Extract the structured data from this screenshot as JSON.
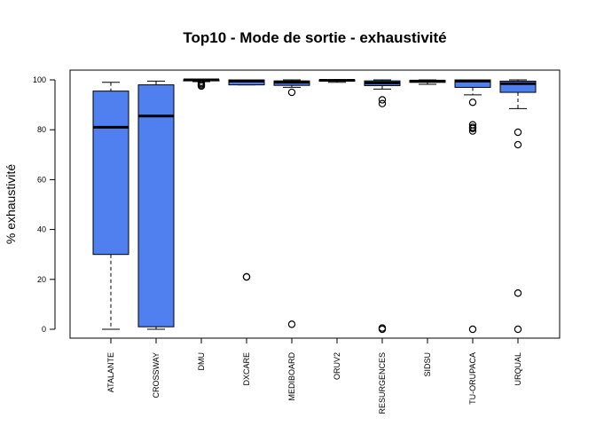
{
  "chart_data": {
    "type": "box",
    "title": "Top10 - Mode de sortie - exhaustivité",
    "xlabel": "",
    "ylabel": "% exhaustivité",
    "ylim": [
      0,
      100
    ],
    "yticks": [
      0,
      20,
      40,
      60,
      80,
      100
    ],
    "grid": false,
    "box_color": "#5080F0",
    "categories": [
      "ATALANTE",
      "CROSSWAY",
      "DMU",
      "DXCARE",
      "MEDIBOARD",
      "ORUV2",
      "RESURGENCES",
      "SIDSU",
      "TU-ORUPACA",
      "URQUAL"
    ],
    "boxes": [
      {
        "category": "ATALANTE",
        "whisker_low": 0,
        "q1": 30,
        "median": 81,
        "q3": 95.5,
        "whisker_high": 99,
        "outliers": []
      },
      {
        "category": "CROSSWAY",
        "whisker_low": 0,
        "q1": 1,
        "median": 85.5,
        "q3": 98,
        "whisker_high": 99.5,
        "outliers": []
      },
      {
        "category": "DMU",
        "whisker_low": 99.3,
        "q1": 99.6,
        "median": 100,
        "q3": 100,
        "whisker_high": 100,
        "outliers": [
          97.5,
          98,
          98.5,
          99
        ]
      },
      {
        "category": "DXCARE",
        "whisker_low": 98,
        "q1": 98,
        "median": 99.5,
        "q3": 100,
        "whisker_high": 100,
        "outliers": [
          21,
          21
        ]
      },
      {
        "category": "MEDIBOARD",
        "whisker_low": 97,
        "q1": 97.8,
        "median": 99,
        "q3": 99.6,
        "whisker_high": 100,
        "outliers": [
          95,
          2
        ]
      },
      {
        "category": "ORUV2",
        "whisker_low": 99,
        "q1": 99.5,
        "median": 99.8,
        "q3": 100,
        "whisker_high": 100,
        "outliers": []
      },
      {
        "category": "RESURGENCES",
        "whisker_low": 96.3,
        "q1": 97.7,
        "median": 98.8,
        "q3": 99.6,
        "whisker_high": 100,
        "outliers": [
          92,
          90.5,
          0.5,
          0
        ]
      },
      {
        "category": "SIDSU",
        "whisker_low": 98.2,
        "q1": 99,
        "median": 99.5,
        "q3": 99.8,
        "whisker_high": 100,
        "outliers": []
      },
      {
        "category": "TU-ORUPACA",
        "whisker_low": 94,
        "q1": 97,
        "median": 99.5,
        "q3": 100,
        "whisker_high": 100,
        "outliers": [
          91,
          82,
          81,
          80.5,
          79.5,
          0
        ]
      },
      {
        "category": "URQUAL",
        "whisker_low": 88.5,
        "q1": 95,
        "median": 98.5,
        "q3": 99.5,
        "whisker_high": 100,
        "outliers": [
          79,
          74,
          14.5,
          0
        ]
      }
    ]
  }
}
